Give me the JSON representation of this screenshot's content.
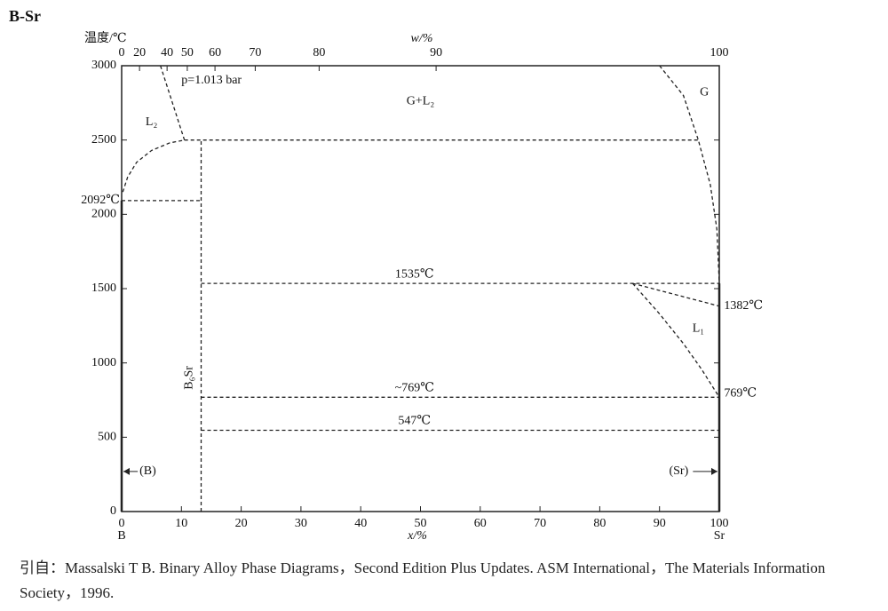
{
  "chart_data": {
    "type": "phase-diagram",
    "title": "B-Sr",
    "y_label": "温度/℃",
    "x_label": "x/%",
    "top_label": "w/%",
    "left_element": "B",
    "right_element": "Sr",
    "pressure": "p=1.013 bar",
    "xlim": [
      0,
      100
    ],
    "ylim": [
      0,
      3000
    ],
    "xticks": [
      0,
      10,
      20,
      30,
      40,
      50,
      60,
      70,
      80,
      90,
      100
    ],
    "yticks": [
      0,
      500,
      1000,
      1500,
      2000,
      2500,
      3000
    ],
    "top_ticks": [
      0,
      20,
      40,
      50,
      60,
      70,
      80,
      90,
      100
    ],
    "phase_labels": [
      "L₂",
      "G+L₂",
      "G",
      "L₁",
      "B₆Sr",
      "(B)",
      "(Sr)"
    ],
    "temperature_labels": [
      {
        "label": "2092℃",
        "value": 2092
      },
      {
        "label": "1535℃",
        "value": 1535
      },
      {
        "label": "1382℃",
        "value": 1382
      },
      {
        "label": "~769℃",
        "value": 769
      },
      {
        "label": "769℃",
        "value": 769
      },
      {
        "label": "547℃",
        "value": 547
      }
    ],
    "lines": [
      {
        "style": "dashed",
        "x": [
          0.2,
          1,
          2.5,
          5,
          8,
          10.5
        ],
        "y": [
          2150,
          2250,
          2350,
          2430,
          2480,
          2500
        ]
      },
      {
        "style": "dashed",
        "x": [
          6.5,
          10.5
        ],
        "y": [
          3000,
          2500
        ]
      },
      {
        "style": "dashed",
        "x": [
          10.5,
          96.5
        ],
        "y": [
          2500,
          2500
        ]
      },
      {
        "style": "dashed",
        "x": [
          90,
          94,
          96.5,
          98.5,
          99.6,
          100
        ],
        "y": [
          3000,
          2800,
          2500,
          2200,
          1900,
          1535
        ]
      },
      {
        "style": "dashed",
        "x": [
          0,
          13.3
        ],
        "y": [
          2092,
          2092
        ]
      },
      {
        "style": "dashed",
        "x": [
          13.3,
          13.3
        ],
        "y": [
          0,
          2500
        ]
      },
      {
        "style": "dashed",
        "x": [
          13.3,
          100
        ],
        "y": [
          1535,
          1535
        ]
      },
      {
        "style": "dashed",
        "x": [
          85.5,
          100
        ],
        "y": [
          1535,
          1382
        ]
      },
      {
        "style": "dashed",
        "x": [
          85.5,
          90,
          94,
          97,
          100
        ],
        "y": [
          1535,
          1330,
          1130,
          960,
          769
        ]
      },
      {
        "style": "dashed",
        "x": [
          13.3,
          100
        ],
        "y": [
          769,
          769
        ]
      },
      {
        "style": "dashed",
        "x": [
          13.3,
          100
        ],
        "y": [
          547,
          547
        ]
      },
      {
        "style": "solid",
        "x": [
          0,
          0
        ],
        "y": [
          0,
          2092
        ]
      },
      {
        "style": "solid",
        "x": [
          100,
          100
        ],
        "y": [
          0,
          1535
        ]
      }
    ]
  },
  "citation": "引自：Massalski T B. Binary Alloy Phase Diagrams，Second Edition Plus Updates. ASM International，The Materials Information Society，1996."
}
